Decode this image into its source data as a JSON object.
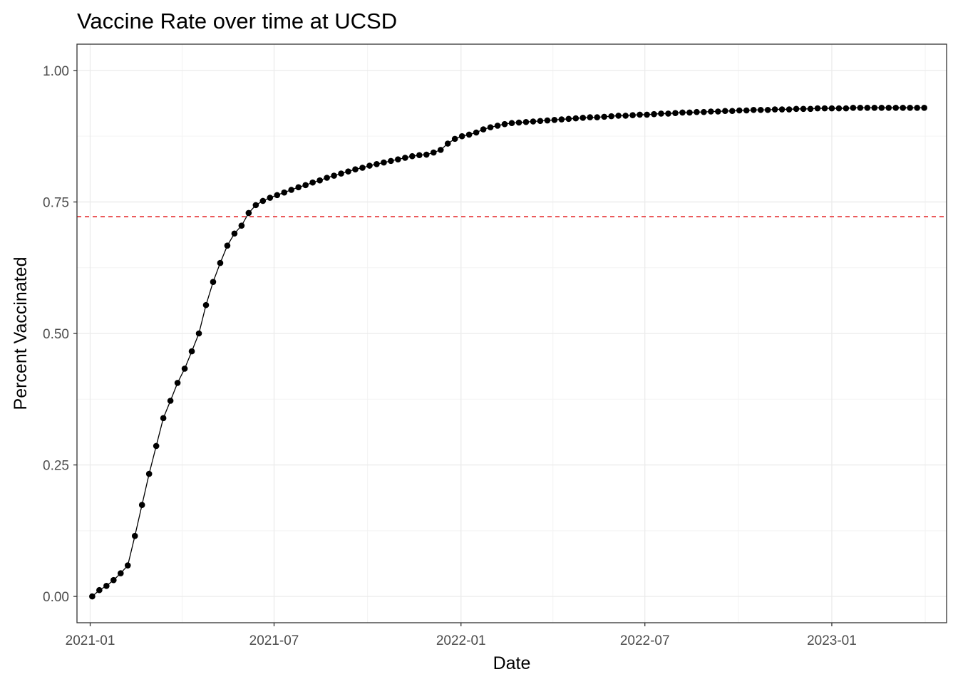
{
  "chart_data": {
    "type": "line",
    "title": "Vaccine Rate over time at UCSD",
    "xlabel": "Date",
    "ylabel": "Percent Vaccinated",
    "x_axis": {
      "type": "date",
      "range": [
        "2020-12-19",
        "2023-04-24"
      ],
      "ticks": [
        "2021-01-01",
        "2021-07-01",
        "2022-01-01",
        "2022-07-01",
        "2023-01-01"
      ],
      "tick_labels": [
        "2021-01",
        "2021-07",
        "2022-01",
        "2022-07",
        "2023-01"
      ]
    },
    "y_axis": {
      "range": [
        -0.05,
        1.05
      ],
      "ticks": [
        0.0,
        0.25,
        0.5,
        0.75,
        1.0
      ],
      "tick_labels": [
        "0.00",
        "0.25",
        "0.50",
        "0.75",
        "1.00"
      ]
    },
    "grid": true,
    "reference_line": {
      "y": 0.722,
      "color": "#e41a1c",
      "style": "dashed"
    },
    "series": [
      {
        "color": "#000000",
        "markers": true,
        "x": [
          "2021-01-03",
          "2021-01-10",
          "2021-01-17",
          "2021-01-24",
          "2021-01-31",
          "2021-02-07",
          "2021-02-14",
          "2021-02-21",
          "2021-02-28",
          "2021-03-07",
          "2021-03-14",
          "2021-03-21",
          "2021-03-28",
          "2021-04-04",
          "2021-04-11",
          "2021-04-18",
          "2021-04-25",
          "2021-05-02",
          "2021-05-09",
          "2021-05-16",
          "2021-05-23",
          "2021-05-30",
          "2021-06-06",
          "2021-06-13",
          "2021-06-20",
          "2021-06-27",
          "2021-07-04",
          "2021-07-11",
          "2021-07-18",
          "2021-07-25",
          "2021-08-01",
          "2021-08-08",
          "2021-08-15",
          "2021-08-22",
          "2021-08-29",
          "2021-09-05",
          "2021-09-12",
          "2021-09-19",
          "2021-09-26",
          "2021-10-03",
          "2021-10-10",
          "2021-10-17",
          "2021-10-24",
          "2021-10-31",
          "2021-11-07",
          "2021-11-14",
          "2021-11-21",
          "2021-11-28",
          "2021-12-05",
          "2021-12-12",
          "2021-12-19",
          "2021-12-26",
          "2022-01-02",
          "2022-01-09",
          "2022-01-16",
          "2022-01-23",
          "2022-01-30",
          "2022-02-06",
          "2022-02-13",
          "2022-02-20",
          "2022-02-27",
          "2022-03-06",
          "2022-03-13",
          "2022-03-20",
          "2022-03-27",
          "2022-04-03",
          "2022-04-10",
          "2022-04-17",
          "2022-04-24",
          "2022-05-01",
          "2022-05-08",
          "2022-05-15",
          "2022-05-22",
          "2022-05-29",
          "2022-06-05",
          "2022-06-12",
          "2022-06-19",
          "2022-06-26",
          "2022-07-03",
          "2022-07-10",
          "2022-07-17",
          "2022-07-24",
          "2022-07-31",
          "2022-08-07",
          "2022-08-14",
          "2022-08-21",
          "2022-08-28",
          "2022-09-04",
          "2022-09-11",
          "2022-09-18",
          "2022-09-25",
          "2022-10-02",
          "2022-10-09",
          "2022-10-16",
          "2022-10-23",
          "2022-10-30",
          "2022-11-06",
          "2022-11-13",
          "2022-11-20",
          "2022-11-27",
          "2022-12-04",
          "2022-12-11",
          "2022-12-18",
          "2022-12-25",
          "2023-01-01",
          "2023-01-08",
          "2023-01-15",
          "2023-01-22",
          "2023-01-29",
          "2023-02-05",
          "2023-02-12",
          "2023-02-19",
          "2023-02-26",
          "2023-03-05",
          "2023-03-12",
          "2023-03-19",
          "2023-03-26",
          "2023-04-02"
        ],
        "y": [
          0.0,
          0.012,
          0.02,
          0.031,
          0.044,
          0.059,
          0.115,
          0.174,
          0.233,
          0.286,
          0.339,
          0.372,
          0.406,
          0.433,
          0.466,
          0.5,
          0.554,
          0.598,
          0.634,
          0.667,
          0.69,
          0.705,
          0.729,
          0.744,
          0.752,
          0.758,
          0.763,
          0.768,
          0.773,
          0.778,
          0.782,
          0.787,
          0.791,
          0.796,
          0.8,
          0.804,
          0.808,
          0.812,
          0.815,
          0.819,
          0.822,
          0.825,
          0.828,
          0.831,
          0.834,
          0.837,
          0.839,
          0.84,
          0.844,
          0.849,
          0.861,
          0.87,
          0.875,
          0.878,
          0.882,
          0.888,
          0.892,
          0.895,
          0.898,
          0.9,
          0.901,
          0.902,
          0.903,
          0.904,
          0.905,
          0.906,
          0.907,
          0.908,
          0.909,
          0.91,
          0.911,
          0.911,
          0.912,
          0.913,
          0.914,
          0.914,
          0.915,
          0.916,
          0.916,
          0.917,
          0.918,
          0.918,
          0.919,
          0.92,
          0.92,
          0.921,
          0.921,
          0.922,
          0.922,
          0.923,
          0.923,
          0.924,
          0.924,
          0.925,
          0.925,
          0.925,
          0.926,
          0.926,
          0.926,
          0.927,
          0.927,
          0.927,
          0.928,
          0.928,
          0.928,
          0.928,
          0.928,
          0.929,
          0.929,
          0.929,
          0.929,
          0.929,
          0.929,
          0.929,
          0.929,
          0.929,
          0.929,
          0.929
        ]
      }
    ]
  }
}
